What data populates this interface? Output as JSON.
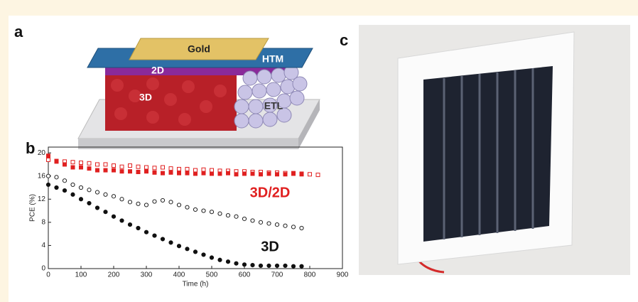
{
  "figure": {
    "panels": [
      "a",
      "b",
      "c"
    ],
    "schematic_labels": [
      "Gold",
      "HTM",
      "2D",
      "3D",
      "ETL"
    ]
  },
  "chart_data": {
    "type": "scatter",
    "x_label": "Time (h)",
    "y_label": "PCE (%)",
    "x": [
      0,
      25,
      50,
      75,
      100,
      125,
      150,
      175,
      200,
      225,
      250,
      275,
      300,
      325,
      350,
      375,
      400,
      425,
      450,
      475,
      500,
      525,
      550,
      575,
      600,
      625,
      650,
      675,
      700,
      725,
      750,
      775,
      800,
      825
    ],
    "series": [
      {
        "color": "#e02020",
        "marker": "square-open",
        "values": [
          18.8,
          18.6,
          18.5,
          18.4,
          18.3,
          18.2,
          18.0,
          18.0,
          17.8,
          17.6,
          17.8,
          17.6,
          17.5,
          17.4,
          17.5,
          17.3,
          17.2,
          17.2,
          17.0,
          17.1,
          17.0,
          16.9,
          16.9,
          16.8,
          16.8,
          16.7,
          16.7,
          16.6,
          16.6,
          16.5,
          16.5,
          16.4,
          16.3,
          16.2
        ]
      },
      {
        "color": "#e02020",
        "marker": "square",
        "values": [
          19.5,
          18.5,
          18.0,
          17.5,
          17.5,
          17.3,
          17.0,
          17.0,
          17.0,
          16.8,
          16.8,
          16.7,
          16.8,
          16.6,
          16.5,
          16.6,
          16.5,
          16.5,
          16.4,
          16.5,
          16.4,
          16.4,
          16.5,
          16.3,
          16.4,
          16.4,
          16.3,
          16.4,
          16.3,
          16.3,
          16.4,
          16.3,
          null,
          null
        ]
      },
      {
        "color": "#222222",
        "marker": "circle-open",
        "values": [
          16.0,
          15.8,
          15.2,
          14.5,
          14.0,
          13.6,
          13.2,
          12.8,
          12.5,
          12.0,
          11.5,
          11.2,
          11.0,
          11.6,
          11.8,
          11.5,
          11.0,
          10.6,
          10.2,
          10.0,
          9.8,
          9.5,
          9.2,
          9.0,
          8.6,
          8.3,
          8.0,
          7.8,
          7.6,
          7.4,
          7.2,
          7.0,
          null,
          null
        ]
      },
      {
        "color": "#111111",
        "marker": "circle",
        "values": [
          14.5,
          14.0,
          13.5,
          12.8,
          12.0,
          11.3,
          10.5,
          9.8,
          9.0,
          8.3,
          7.6,
          7.0,
          6.3,
          5.7,
          5.1,
          4.5,
          3.9,
          3.4,
          2.9,
          2.4,
          1.9,
          1.5,
          1.2,
          0.9,
          0.7,
          0.6,
          0.5,
          0.5,
          0.5,
          0.5,
          0.4,
          0.4,
          null,
          null
        ]
      }
    ],
    "annotations": [
      {
        "text": "3D/2D",
        "color": "#e02020"
      },
      {
        "text": "3D",
        "color": "#111111"
      }
    ],
    "xlim": [
      0,
      900
    ],
    "xticks": [
      0,
      100,
      200,
      300,
      400,
      500,
      600,
      700,
      800,
      900
    ],
    "ylim": [
      0,
      21
    ],
    "yticks": [
      0,
      4,
      8,
      12,
      16,
      20
    ]
  }
}
